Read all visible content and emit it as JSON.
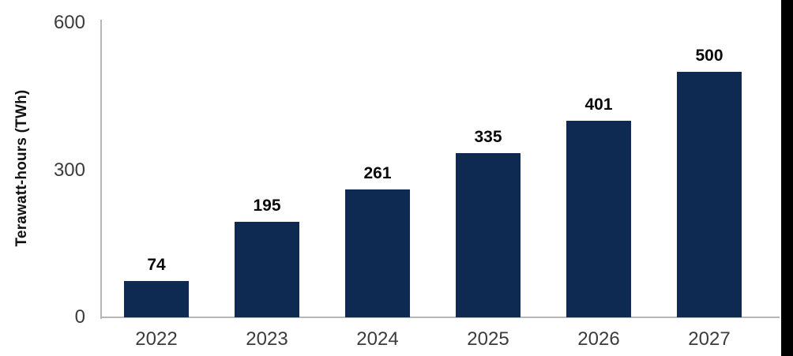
{
  "page": {
    "background": "#ffffff",
    "right_strip_color": "#000000"
  },
  "chart_data": {
    "type": "bar",
    "title": "",
    "xlabel": "",
    "ylabel": "Terawatt-hours (TWh)",
    "categories": [
      "2022",
      "2023",
      "2024",
      "2025",
      "2026",
      "2027"
    ],
    "values": [
      74,
      195,
      261,
      335,
      401,
      500
    ],
    "bar_labels": [
      "74",
      "195",
      "261",
      "335",
      "401",
      "500"
    ],
    "ylim": [
      0,
      600
    ],
    "yticks": [
      0,
      300,
      600
    ],
    "grid": false,
    "legend": "none",
    "bar_color": "#0e2a52",
    "axis_color": "#b7b7b7",
    "tick_label_color": "#3c3c3c",
    "value_label_color": "#0a0a0a"
  }
}
